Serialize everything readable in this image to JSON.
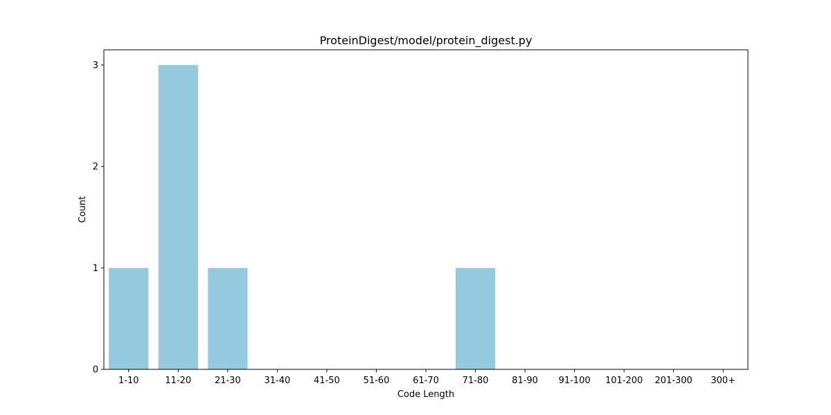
{
  "colors": {
    "bar": "#95cade",
    "axis": "#000000",
    "background": "#ffffff"
  },
  "chart_data": {
    "type": "bar",
    "title": "ProteinDigest/model/protein_digest.py",
    "xlabel": "Code Length",
    "ylabel": "Count",
    "categories": [
      "1-10",
      "11-20",
      "21-30",
      "31-40",
      "41-50",
      "51-60",
      "61-70",
      "71-80",
      "81-90",
      "91-100",
      "101-200",
      "201-300",
      "300+"
    ],
    "values": [
      1,
      3,
      1,
      0,
      0,
      0,
      0,
      1,
      0,
      0,
      0,
      0,
      0
    ],
    "ylim": [
      0,
      3.15
    ],
    "yticks": [
      0,
      1,
      2,
      3
    ],
    "grid": false,
    "legend": "none"
  }
}
